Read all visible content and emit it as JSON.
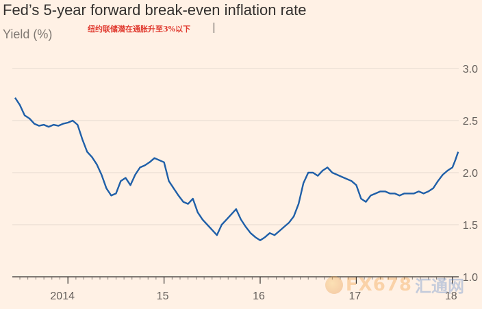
{
  "header": {
    "title": "Fed’s 5-year forward break-even inflation rate",
    "subtitle": "Yield (%)",
    "annotation": "纽约联储潜在通胀升至3%以下"
  },
  "watermark": {
    "text": "FX678",
    "cn": "汇通网",
    "icon": "fx678-logo-icon"
  },
  "colors": {
    "line": "#1f5fa8",
    "grid": "#e6d9ce",
    "background": "#fff1e5"
  },
  "chart_data": {
    "type": "line",
    "title": "Fed’s 5-year forward break-even inflation rate",
    "ylabel": "Yield (%)",
    "xlabel": "",
    "ylim": [
      1.0,
      3.0
    ],
    "xlim": [
      2013.45,
      2018.08
    ],
    "y_ticks": [
      1.0,
      1.5,
      2.0,
      2.5,
      3.0
    ],
    "y_tick_labels": [
      "1.0",
      "1.5",
      "2.0",
      "2.5",
      "3.0"
    ],
    "x_ticks": [
      2014.0,
      2015.0,
      2016.0,
      2017.0,
      2018.0
    ],
    "x_tick_labels": [
      "2014",
      "15",
      "16",
      "17",
      "18"
    ],
    "grid": true,
    "series": [
      {
        "name": "",
        "x": [
          2013.45,
          2013.5,
          2013.55,
          2013.6,
          2013.65,
          2013.7,
          2013.75,
          2013.8,
          2013.85,
          2013.9,
          2013.95,
          2014.0,
          2014.05,
          2014.1,
          2014.15,
          2014.2,
          2014.25,
          2014.3,
          2014.35,
          2014.4,
          2014.45,
          2014.5,
          2014.55,
          2014.6,
          2014.65,
          2014.7,
          2014.75,
          2014.8,
          2014.85,
          2014.9,
          2014.95,
          2015.0,
          2015.05,
          2015.1,
          2015.15,
          2015.2,
          2015.25,
          2015.3,
          2015.35,
          2015.4,
          2015.45,
          2015.5,
          2015.55,
          2015.6,
          2015.65,
          2015.7,
          2015.75,
          2015.8,
          2015.85,
          2015.9,
          2015.95,
          2016.0,
          2016.05,
          2016.1,
          2016.15,
          2016.2,
          2016.25,
          2016.3,
          2016.35,
          2016.4,
          2016.45,
          2016.5,
          2016.55,
          2016.6,
          2016.65,
          2016.7,
          2016.75,
          2016.8,
          2016.85,
          2016.9,
          2016.95,
          2017.0,
          2017.05,
          2017.1,
          2017.15,
          2017.2,
          2017.25,
          2017.3,
          2017.35,
          2017.4,
          2017.45,
          2017.5,
          2017.55,
          2017.6,
          2017.65,
          2017.7,
          2017.75,
          2017.8,
          2017.85,
          2017.9,
          2017.95,
          2018.0,
          2018.03,
          2018.06
        ],
        "values": [
          2.72,
          2.65,
          2.55,
          2.52,
          2.47,
          2.45,
          2.46,
          2.44,
          2.46,
          2.45,
          2.47,
          2.48,
          2.5,
          2.46,
          2.32,
          2.2,
          2.15,
          2.08,
          1.98,
          1.85,
          1.78,
          1.8,
          1.92,
          1.95,
          1.88,
          1.98,
          2.05,
          2.07,
          2.1,
          2.14,
          2.12,
          2.1,
          1.92,
          1.85,
          1.78,
          1.72,
          1.7,
          1.75,
          1.62,
          1.55,
          1.5,
          1.45,
          1.4,
          1.5,
          1.55,
          1.6,
          1.65,
          1.55,
          1.48,
          1.42,
          1.38,
          1.35,
          1.38,
          1.42,
          1.4,
          1.44,
          1.48,
          1.52,
          1.58,
          1.7,
          1.9,
          2.0,
          2.0,
          1.97,
          2.02,
          2.05,
          2.0,
          1.98,
          1.96,
          1.94,
          1.92,
          1.88,
          1.75,
          1.72,
          1.78,
          1.8,
          1.82,
          1.82,
          1.8,
          1.8,
          1.78,
          1.8,
          1.8,
          1.8,
          1.82,
          1.8,
          1.82,
          1.85,
          1.92,
          1.98,
          2.02,
          2.05,
          2.12,
          2.2
        ]
      }
    ]
  }
}
